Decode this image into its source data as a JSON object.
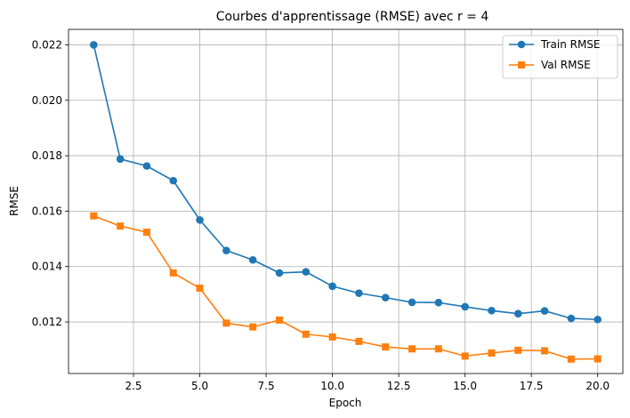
{
  "chart_data": {
    "type": "line",
    "title": "Courbes d'apprentissage (RMSE) avec r = 4",
    "xlabel": "Epoch",
    "ylabel": "RMSE",
    "xlim": [
      0.05,
      20.95
    ],
    "ylim": [
      0.01014,
      0.02256
    ],
    "xticks": [
      2.5,
      5.0,
      7.5,
      10.0,
      12.5,
      15.0,
      17.5,
      20.0
    ],
    "xtick_labels": [
      "2.5",
      "5.0",
      "7.5",
      "10.0",
      "12.5",
      "15.0",
      "17.5",
      "20.0"
    ],
    "yticks": [
      0.012,
      0.014,
      0.016,
      0.018,
      0.02,
      0.022
    ],
    "ytick_labels": [
      "0.012",
      "0.014",
      "0.016",
      "0.018",
      "0.020",
      "0.022"
    ],
    "grid": true,
    "legend_position": "top-right",
    "x": [
      1,
      2,
      3,
      4,
      5,
      6,
      7,
      8,
      9,
      10,
      11,
      12,
      13,
      14,
      15,
      16,
      17,
      18,
      19,
      20
    ],
    "series": [
      {
        "name": "Train RMSE",
        "color": "#1f77b4",
        "marker": "circle",
        "values": [
          0.022,
          0.01788,
          0.01763,
          0.0171,
          0.01568,
          0.01458,
          0.01424,
          0.01377,
          0.01381,
          0.01329,
          0.01304,
          0.01288,
          0.01271,
          0.0127,
          0.01255,
          0.01241,
          0.0123,
          0.0124,
          0.01213,
          0.01209
        ]
      },
      {
        "name": "Val RMSE",
        "color": "#ff7f0e",
        "marker": "square",
        "values": [
          0.01583,
          0.01546,
          0.01524,
          0.01377,
          0.01322,
          0.01196,
          0.01182,
          0.01207,
          0.01156,
          0.01146,
          0.0113,
          0.0111,
          0.01103,
          0.01103,
          0.01077,
          0.01088,
          0.01098,
          0.01096,
          0.01066,
          0.01067
        ]
      }
    ]
  }
}
